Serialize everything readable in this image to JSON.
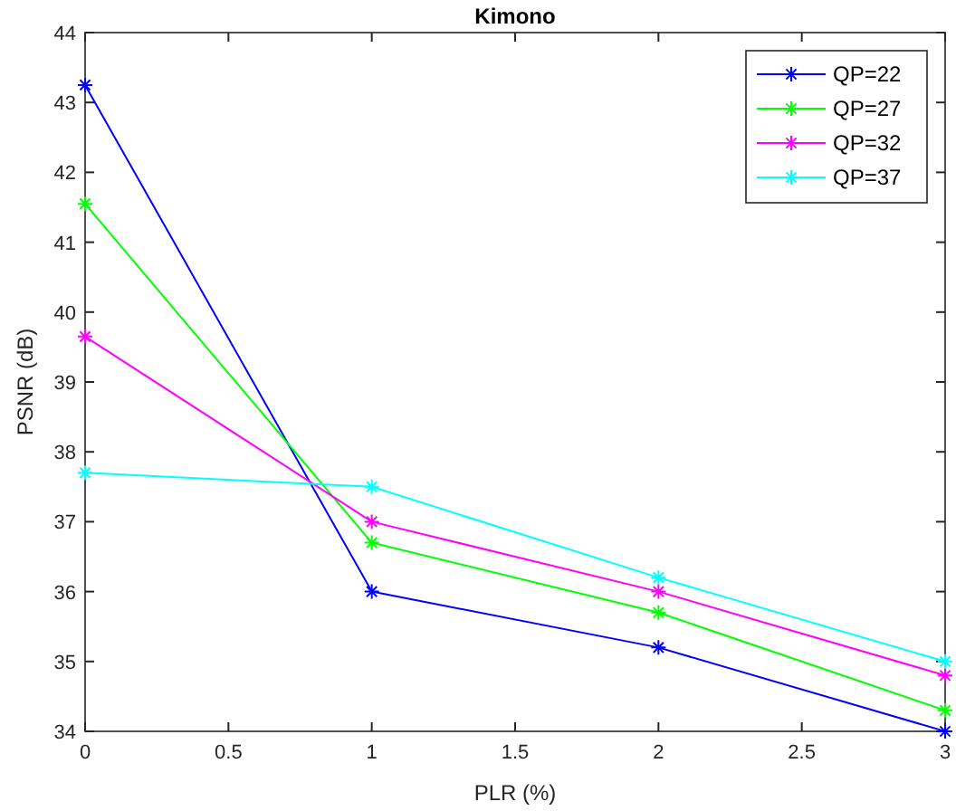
{
  "chart_data": {
    "type": "line",
    "title": "Kimono",
    "xlabel": "PLR (%)",
    "ylabel": "PSNR (dB)",
    "x": [
      0,
      1,
      2,
      3
    ],
    "series": [
      {
        "name": "QP=22",
        "color": "#0000ff",
        "values": [
          43.25,
          36.0,
          35.2,
          34.0
        ]
      },
      {
        "name": "QP=27",
        "color": "#00ff00",
        "values": [
          41.55,
          36.7,
          35.7,
          34.3
        ]
      },
      {
        "name": "QP=32",
        "color": "#ff00ff",
        "values": [
          39.65,
          37.0,
          36.0,
          34.8
        ]
      },
      {
        "name": "QP=37",
        "color": "#00ffff",
        "values": [
          37.7,
          37.5,
          36.2,
          35.0
        ]
      }
    ],
    "xlim": [
      0,
      3
    ],
    "xticks": [
      0,
      0.5,
      1,
      1.5,
      2,
      2.5,
      3
    ],
    "ylim": [
      34,
      44
    ],
    "yticks": [
      34,
      35,
      36,
      37,
      38,
      39,
      40,
      41,
      42,
      43,
      44
    ],
    "grid": false,
    "legend": "top right",
    "marker": "cross",
    "line_style": "solid"
  }
}
